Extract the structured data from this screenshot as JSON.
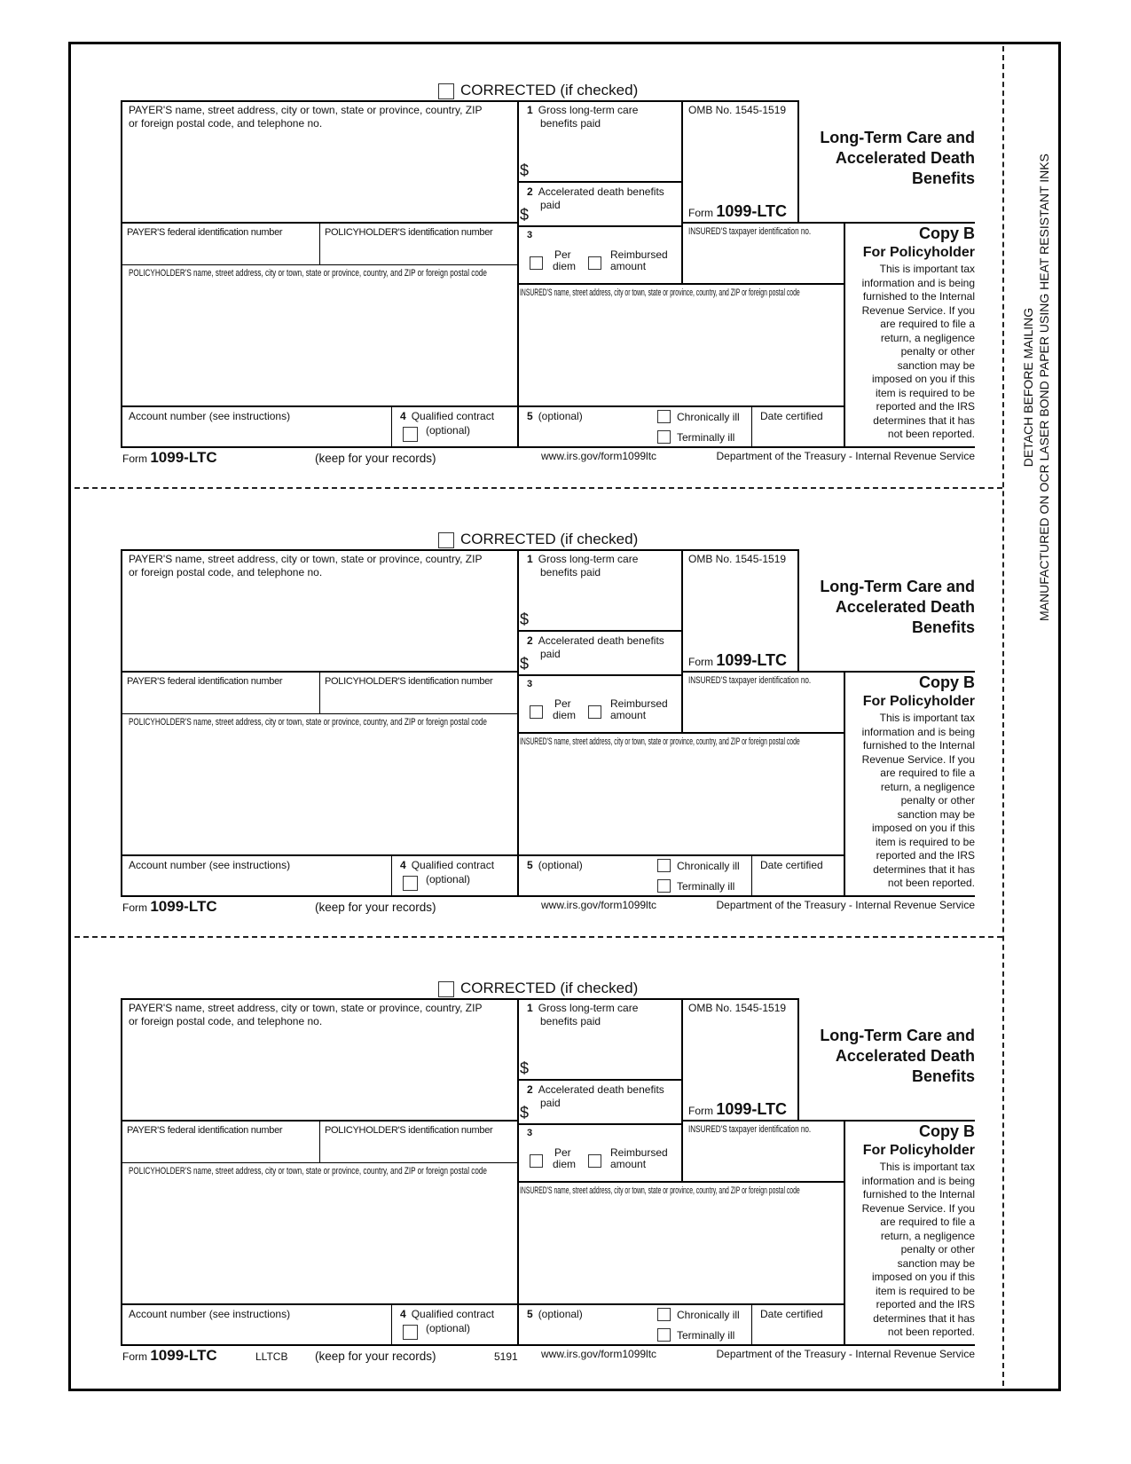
{
  "form": {
    "corrected_label": "CORRECTED (if checked)",
    "payer_name_label_1": "PAYER'S name, street address, city or town, state or province, country, ZIP",
    "payer_name_label_2": "or foreign postal code, and telephone no.",
    "box1_num": "1",
    "box1_label_1": "Gross long-term care",
    "box1_label_2": "benefits paid",
    "dollar": "$",
    "omb": "OMB No. 1545-1519",
    "form_word": "Form",
    "form_number": "1099-LTC",
    "title_lines": [
      "Long-Term Care and",
      "Accelerated Death",
      "Benefits"
    ],
    "box2_num": "2",
    "box2_label_1": "Accelerated death benefits",
    "box2_label_2": "paid",
    "payer_fed_id_label": "PAYER'S federal identification number",
    "policyholder_id_label": "POLICYHOLDER'S identification number",
    "insured_tin_label": "INSURED'S taxpayer identification no.",
    "copy_label": "Copy B",
    "copy_for": "For Policyholder",
    "copy_notice_lines": [
      "This is important tax",
      "information and is being",
      "furnished to the Internal",
      "Revenue Service. If you",
      "are required to file a",
      "return, a negligence",
      "penalty or other",
      "sanction may be",
      "imposed on you if this",
      "item is required to be",
      "reported and the IRS",
      "determines that it has",
      "not been reported."
    ],
    "box3_num": "3",
    "per_diem_1": "Per",
    "per_diem_2": "diem",
    "reimbursed_1": "Reimbursed",
    "reimbursed_2": "amount",
    "policyholder_name_label": "POLICYHOLDER'S name, street address, city or town, state or province, country, and ZIP or foreign postal code",
    "insured_name_label": "INSURED'S name, street address, city or town, state or province, country, and ZIP or foreign postal code",
    "account_label": "Account number (see instructions)",
    "box4_num": "4",
    "box4_label_1": "Qualified contract",
    "box4_label_2": "(optional)",
    "box5_num": "5",
    "box5_label": "(optional)",
    "chronically_ill": "Chronically ill",
    "terminally_ill": "Terminally ill",
    "date_certified": "Date certified",
    "keep_records": "(keep for your records)",
    "website": "www.irs.gov/form1099ltc",
    "department": "Department of the Treasury - Internal Revenue Service"
  },
  "copies": [
    {
      "code": "",
      "catalog": ""
    },
    {
      "code": "",
      "catalog": ""
    },
    {
      "code": "LLTCB",
      "catalog": "5191"
    }
  ],
  "margin": {
    "line_1": "DETACH BEFORE MAILING",
    "line_2": "MANUFACTURED ON OCR LASER BOND PAPER USING HEAT RESISTANT INKS"
  }
}
